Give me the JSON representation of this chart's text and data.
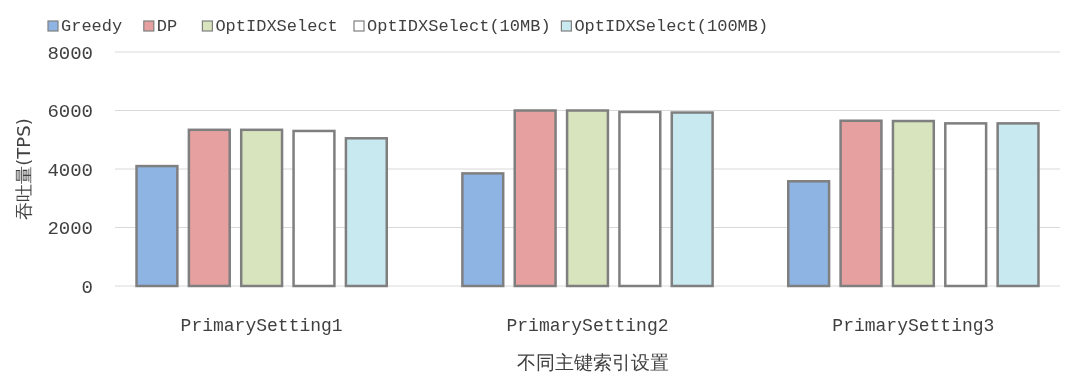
{
  "chart_data": {
    "type": "bar",
    "xlabel": "不同主键索引设置",
    "ylabel": "吞吐量(TPS)",
    "categories": [
      "PrimarySetting1",
      "PrimarySetting2",
      "PrimarySetting3"
    ],
    "series": [
      {
        "name": "Greedy",
        "color": "#8eb4e3",
        "values": [
          4100,
          3850,
          3580
        ]
      },
      {
        "name": "DP",
        "color": "#e6a0a0",
        "values": [
          5340,
          6000,
          5650
        ]
      },
      {
        "name": "OptIDXSelect",
        "color": "#d7e4bd",
        "values": [
          5340,
          6000,
          5640
        ]
      },
      {
        "name": "OptIDXSelect(10MB)",
        "color": "#ffffff",
        "values": [
          5300,
          5950,
          5560
        ]
      },
      {
        "name": "OptIDXSelect(100MB)",
        "color": "#c9e9f0",
        "values": [
          5050,
          5930,
          5560
        ]
      }
    ],
    "ylim": [
      0,
      8000
    ],
    "yticks": [
      0,
      2000,
      4000,
      6000,
      8000
    ],
    "grid": "y",
    "legend": "top"
  }
}
